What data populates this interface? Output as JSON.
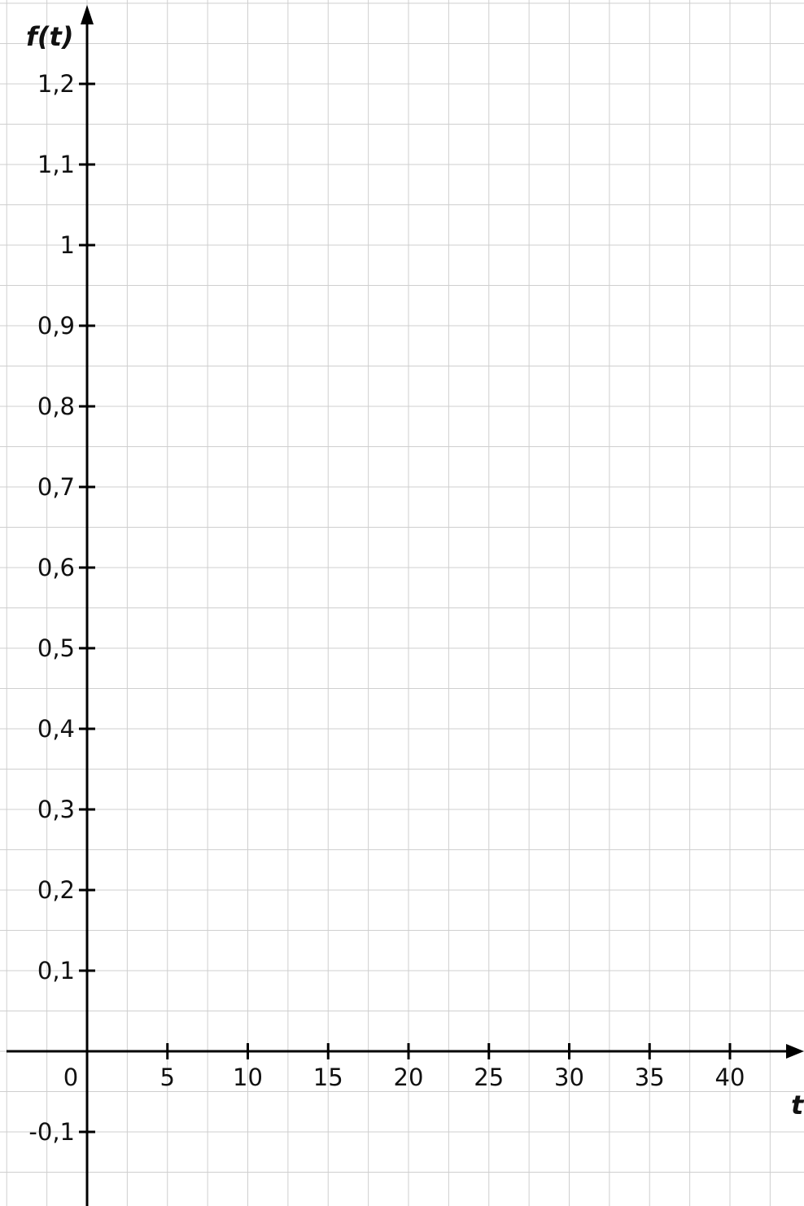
{
  "chart_data": {
    "type": "line",
    "title": "",
    "xlabel": "t",
    "ylabel": "f(t)",
    "series": [],
    "x_ticks": [
      0,
      5,
      10,
      15,
      20,
      25,
      30,
      35,
      40
    ],
    "x_tick_labels": [
      "0",
      "5",
      "10",
      "15",
      "20",
      "25",
      "30",
      "35",
      "40"
    ],
    "y_ticks": [
      1.2,
      1.1,
      1,
      0.9,
      0.8,
      0.7,
      0.6,
      0.5,
      0.4,
      0.3,
      0.2,
      0.1,
      -0.1
    ],
    "y_tick_labels": [
      "1,2",
      "1,1",
      "1",
      "0,9",
      "0,8",
      "0,7",
      "0,6",
      "0,5",
      "0,4",
      "0,3",
      "0,2",
      "0,1",
      "-0,1"
    ],
    "xlim": [
      -5,
      44.5
    ],
    "ylim": [
      -0.19,
      1.3
    ],
    "grid": true,
    "grid_step_x": 2.5,
    "grid_step_y": 0.05,
    "colors": {
      "grid": "#cfcfcf",
      "axis": "#000000",
      "background": "#ffffff"
    }
  }
}
